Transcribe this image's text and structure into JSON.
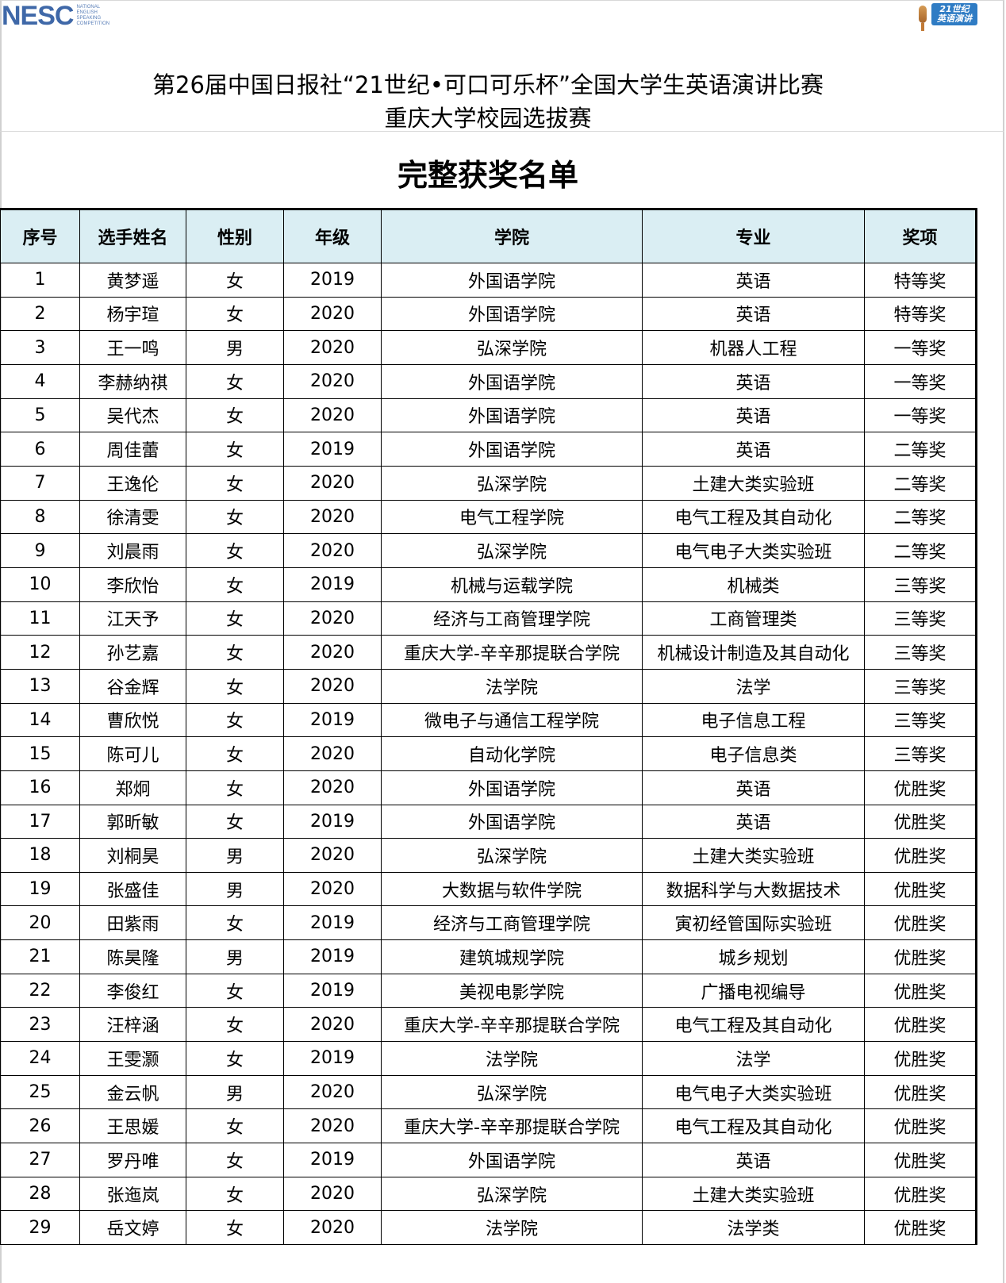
{
  "logos": {
    "left": {
      "text": "NESC",
      "subtext": "NATIONAL ENGLISH SPEAKING COMPETITION",
      "color": "#3f68a8"
    },
    "right": {
      "text": "21世纪 英语演讲",
      "color": "#2f7cc4"
    }
  },
  "title_line1": "第26届中国日报社“21世纪•可口可乐杯”全国大学生英语演讲比赛",
  "title_line2": "重庆大学校园选拔赛",
  "heading": "完整获奖名单",
  "header_bg": "#daeef3",
  "columns": [
    "序号",
    "选手姓名",
    "性别",
    "年级",
    "学院",
    "专业",
    "奖项"
  ],
  "rows": [
    [
      "1",
      "黄梦遥",
      "女",
      "2019",
      "外国语学院",
      "英语",
      "特等奖"
    ],
    [
      "2",
      "杨宇瑄",
      "女",
      "2020",
      "外国语学院",
      "英语",
      "特等奖"
    ],
    [
      "3",
      "王一鸣",
      "男",
      "2020",
      "弘深学院",
      "机器人工程",
      "一等奖"
    ],
    [
      "4",
      "李赫纳祺",
      "女",
      "2020",
      "外国语学院",
      "英语",
      "一等奖"
    ],
    [
      "5",
      "吴代杰",
      "女",
      "2020",
      "外国语学院",
      "英语",
      "一等奖"
    ],
    [
      "6",
      "周佳蕾",
      "女",
      "2019",
      "外国语学院",
      "英语",
      "二等奖"
    ],
    [
      "7",
      "王逸伦",
      "女",
      "2020",
      "弘深学院",
      "土建大类实验班",
      "二等奖"
    ],
    [
      "8",
      "徐清雯",
      "女",
      "2020",
      "电气工程学院",
      "电气工程及其自动化",
      "二等奖"
    ],
    [
      "9",
      "刘晨雨",
      "女",
      "2020",
      "弘深学院",
      "电气电子大类实验班",
      "二等奖"
    ],
    [
      "10",
      "李欣怡",
      "女",
      "2019",
      "机械与运载学院",
      "机械类",
      "三等奖"
    ],
    [
      "11",
      "江天予",
      "女",
      "2020",
      "经济与工商管理学院",
      "工商管理类",
      "三等奖"
    ],
    [
      "12",
      "孙艺嘉",
      "女",
      "2020",
      "重庆大学-辛辛那提联合学院",
      "机械设计制造及其自动化",
      "三等奖"
    ],
    [
      "13",
      "谷金辉",
      "女",
      "2020",
      "法学院",
      "法学",
      "三等奖"
    ],
    [
      "14",
      "曹欣悦",
      "女",
      "2019",
      "微电子与通信工程学院",
      "电子信息工程",
      "三等奖"
    ],
    [
      "15",
      "陈可儿",
      "女",
      "2020",
      "自动化学院",
      "电子信息类",
      "三等奖"
    ],
    [
      "16",
      "郑炯",
      "女",
      "2020",
      "外国语学院",
      "英语",
      "优胜奖"
    ],
    [
      "17",
      "郭昕敏",
      "女",
      "2019",
      "外国语学院",
      "英语",
      "优胜奖"
    ],
    [
      "18",
      "刘桐昊",
      "男",
      "2020",
      "弘深学院",
      "土建大类实验班",
      "优胜奖"
    ],
    [
      "19",
      "张盛佳",
      "男",
      "2020",
      "大数据与软件学院",
      "数据科学与大数据技术",
      "优胜奖"
    ],
    [
      "20",
      "田紫雨",
      "女",
      "2019",
      "经济与工商管理学院",
      "寅初经管国际实验班",
      "优胜奖"
    ],
    [
      "21",
      "陈昊隆",
      "男",
      "2019",
      "建筑城规学院",
      "城乡规划",
      "优胜奖"
    ],
    [
      "22",
      "李俊红",
      "女",
      "2019",
      "美视电影学院",
      "广播电视编导",
      "优胜奖"
    ],
    [
      "23",
      "汪梓涵",
      "女",
      "2020",
      "重庆大学-辛辛那提联合学院",
      "电气工程及其自动化",
      "优胜奖"
    ],
    [
      "24",
      "王雯灏",
      "女",
      "2019",
      "法学院",
      "法学",
      "优胜奖"
    ],
    [
      "25",
      "金云帆",
      "男",
      "2020",
      "弘深学院",
      "电气电子大类实验班",
      "优胜奖"
    ],
    [
      "26",
      "王思媛",
      "女",
      "2020",
      "重庆大学-辛辛那提联合学院",
      "电气工程及其自动化",
      "优胜奖"
    ],
    [
      "27",
      "罗丹唯",
      "女",
      "2019",
      "外国语学院",
      "英语",
      "优胜奖"
    ],
    [
      "28",
      "张迤岚",
      "女",
      "2020",
      "弘深学院",
      "土建大类实验班",
      "优胜奖"
    ],
    [
      "29",
      "岳文婷",
      "女",
      "2020",
      "法学院",
      "法学类",
      "优胜奖"
    ]
  ]
}
